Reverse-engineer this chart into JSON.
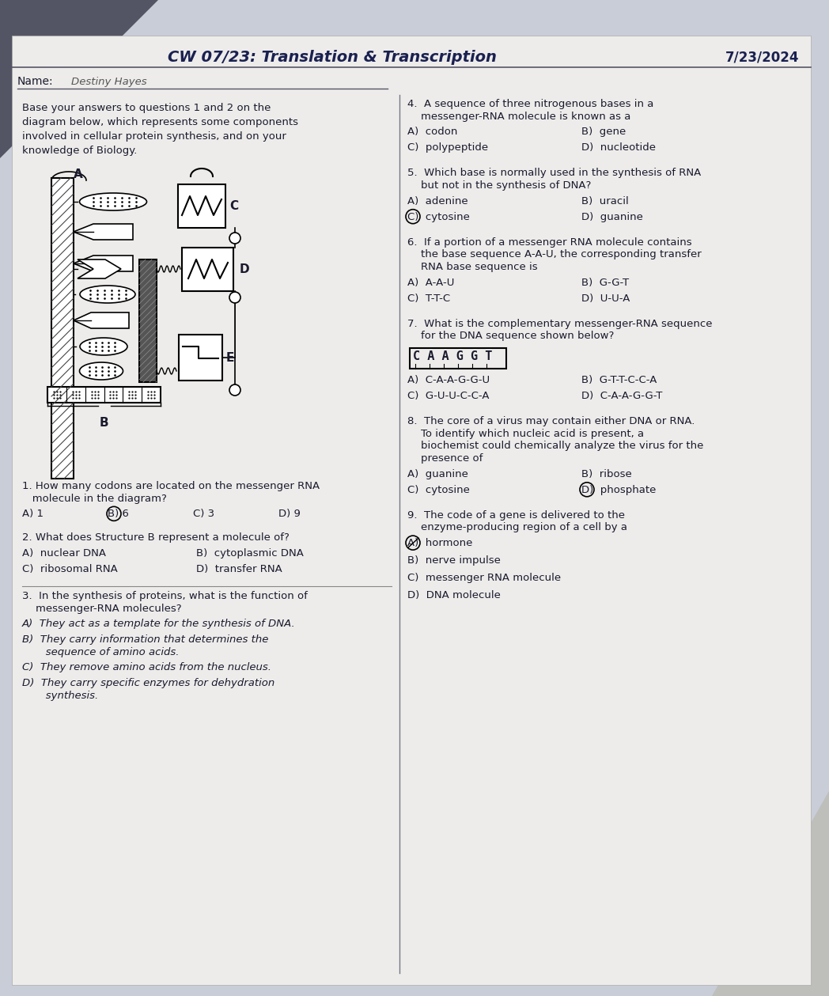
{
  "title": "CW 07/23: Translation & Transcription",
  "date": "7/23/2024",
  "name_label": "Name:",
  "name_value": "Destiny Hayes",
  "bg_color": "#c8cdd8",
  "paper_color": "#edecea",
  "header_bg": "#dde0e8",
  "text_color": "#1a1a2e",
  "left_intro": "Base your answers to questions 1 and 2 on the\ndiagram below, which represents some components\ninvolved in cellular protein synthesis, and on your\nknowledge of Biology.",
  "q1": "1. How many codons are located on the messenger RNA\n   molecule in the diagram?",
  "q1_choices": [
    "A) 1",
    "B) 6",
    "C) 3",
    "D) 9"
  ],
  "q2": "2. What does Structure B represent a molecule of?",
  "q2_L": [
    "A)  nuclear DNA",
    "C)  ribosomal RNA"
  ],
  "q2_R": [
    "B)  cytoplasmic DNA",
    "D)  transfer RNA"
  ],
  "q3": "3.  In the synthesis of proteins, what is the function of\n    messenger-RNA molecules?",
  "q3_choices": [
    "A)  They act as a template for the synthesis of DNA.",
    "B)  They carry information that determines the\n       sequence of amino acids.",
    "C)  They remove amino acids from the nucleus.",
    "D)  They carry specific enzymes for dehydration\n       synthesis."
  ],
  "q4": "4.  A sequence of three nitrogenous bases in a\n    messenger-RNA molecule is known as a",
  "q4_L": [
    "A)  codon",
    "C)  polypeptide"
  ],
  "q4_R": [
    "B)  gene",
    "D)  nucleotide"
  ],
  "q5": "5.  Which base is normally used in the synthesis of RNA\n    but not in the synthesis of DNA?",
  "q5_L": [
    "A)  adenine",
    "C)  cytosine"
  ],
  "q5_R": [
    "B)  uracil",
    "D)  guanine"
  ],
  "q6": "6.  If a portion of a messenger RNA molecule contains\n    the base sequence A-A-U, the corresponding transfer\n    RNA base sequence is",
  "q6_L": [
    "A)  A-A-U",
    "C)  T-T-C"
  ],
  "q6_R": [
    "B)  G-G-T",
    "D)  U-U-A"
  ],
  "q7": "7.  What is the complementary messenger-RNA sequence\n    for the DNA sequence shown below?",
  "q7_dna": "C A A G G T",
  "q7_L": [
    "A)  C-A-A-G-G-U",
    "C)  G-U-U-C-C-A"
  ],
  "q7_R": [
    "B)  G-T-T-C-C-A",
    "D)  C-A-A-G-G-T"
  ],
  "q8": "8.  The core of a virus may contain either DNA or RNA.\n    To identify which nucleic acid is present, a\n    biochemist could chemically analyze the virus for the\n    presence of",
  "q8_L": [
    "A)  guanine",
    "C)  cytosine"
  ],
  "q8_R": [
    "B)  ribose",
    "D)  phosphate"
  ],
  "q9": "9.  The code of a gene is delivered to the\n    enzyme-producing region of a cell by a",
  "q9_choices": [
    "A)  hormone",
    "B)  nerve impulse",
    "C)  messenger RNA molecule",
    "D)  DNA molecule"
  ]
}
